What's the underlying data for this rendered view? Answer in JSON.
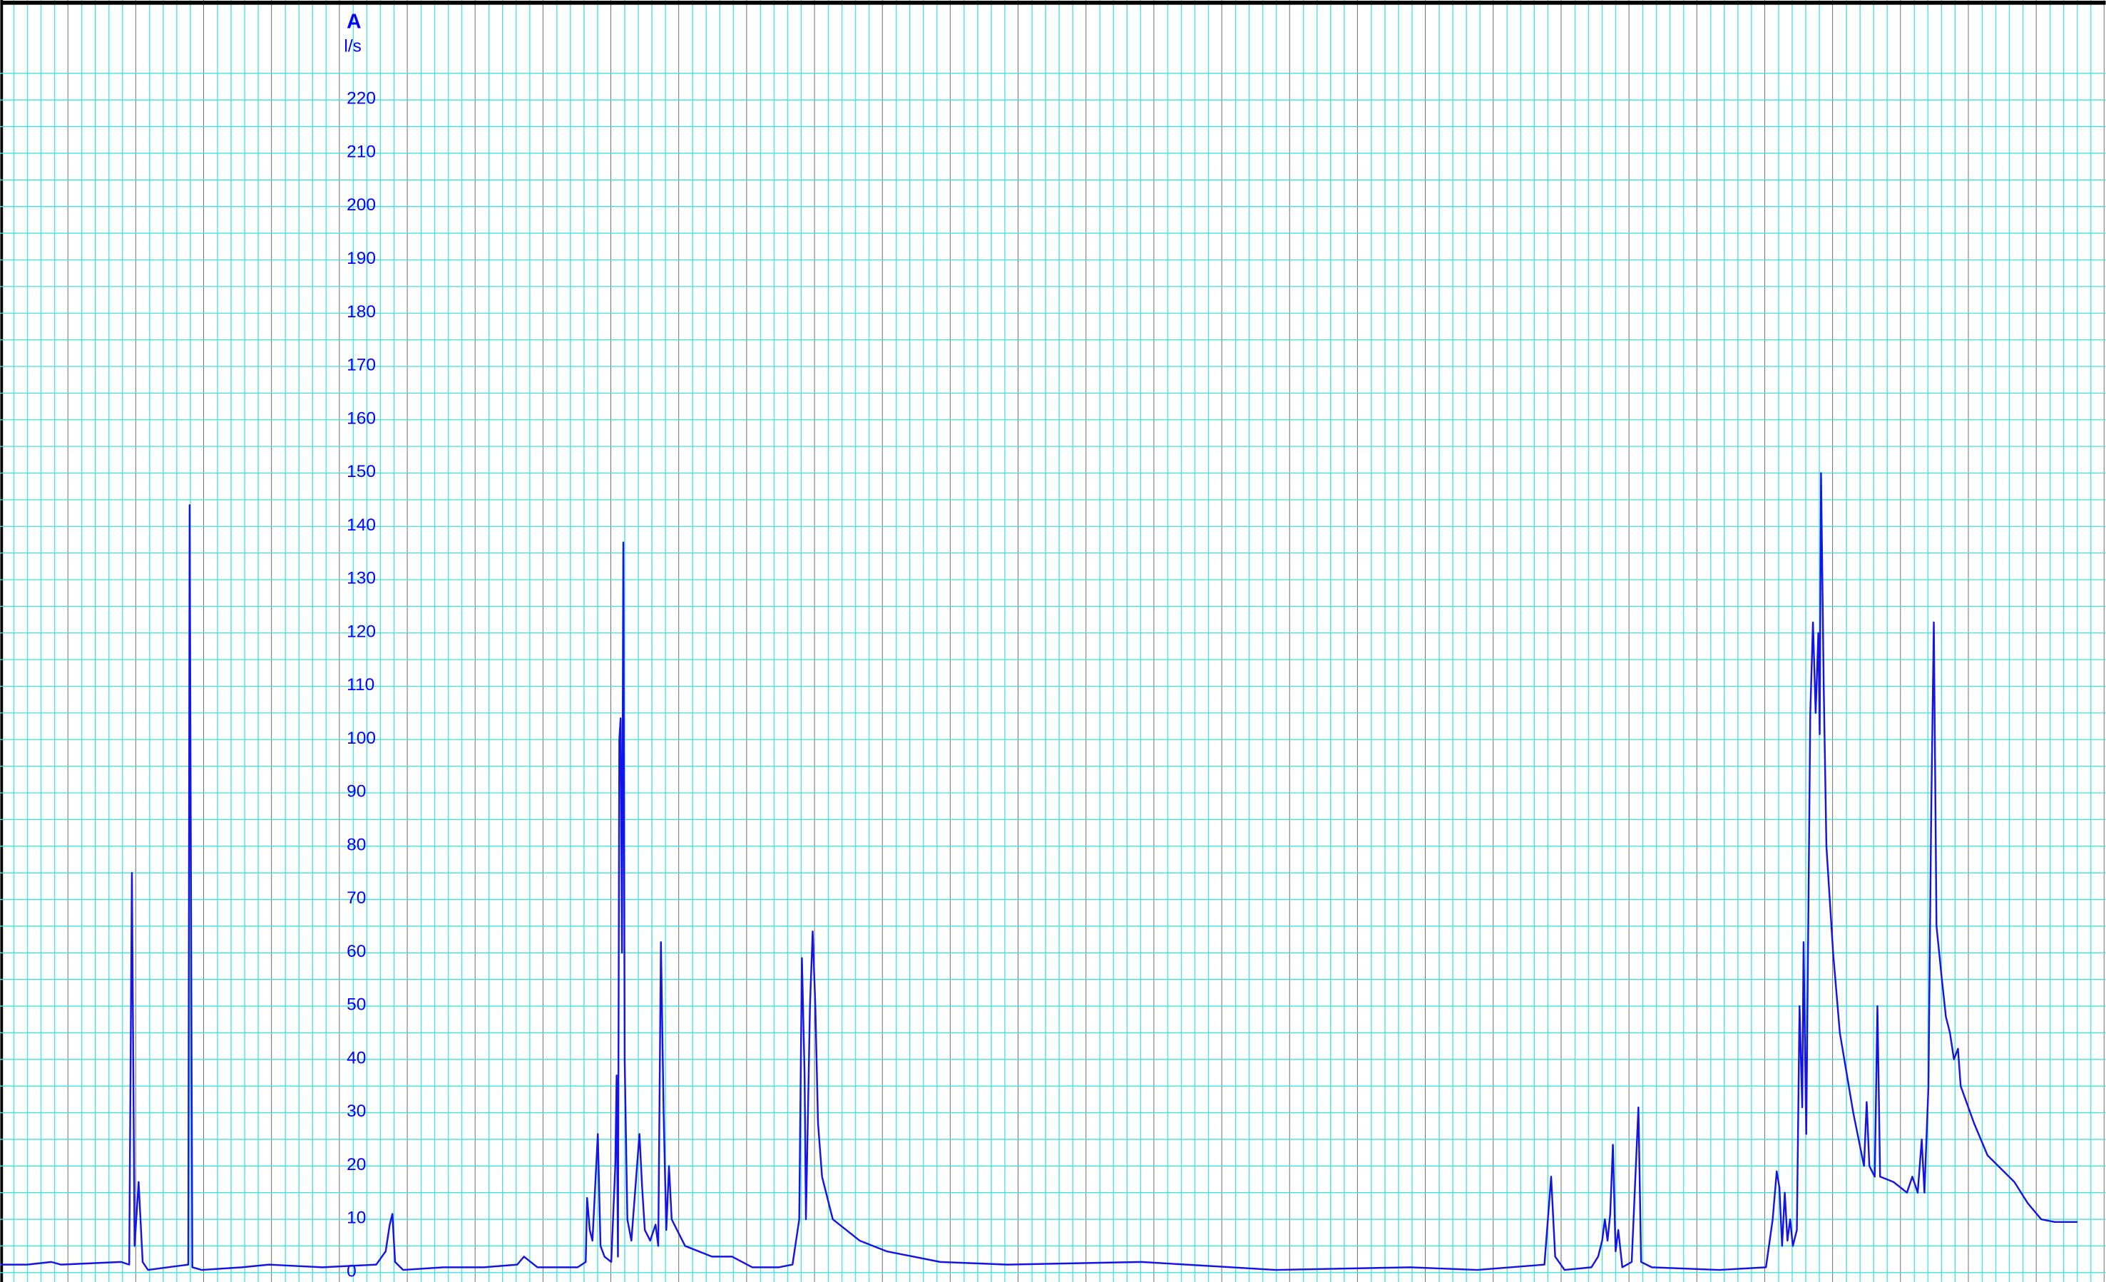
{
  "chart_data": {
    "type": "line",
    "title": "A",
    "y_label": "l/s",
    "ylim": [
      0,
      238
    ],
    "yticks": [
      0,
      10,
      20,
      30,
      40,
      50,
      60,
      70,
      80,
      90,
      100,
      110,
      120,
      130,
      140,
      150,
      160,
      170,
      180,
      190,
      200,
      210,
      220
    ],
    "xlim": [
      0,
      1568
    ],
    "grid": true,
    "series": [
      {
        "color": "#1414e6",
        "x": [
          0,
          20,
          38,
          45,
          90,
          96,
          98,
          100,
          103,
          106,
          110,
          125,
          140,
          141,
          143,
          150,
          180,
          200,
          240,
          280,
          287,
          290,
          292,
          294,
          300,
          330,
          360,
          385,
          390,
          400,
          430,
          436,
          437,
          439,
          441,
          443,
          445,
          447,
          450,
          455,
          458,
          459,
          460,
          461,
          462,
          463,
          464,
          465,
          467,
          470,
          476,
          478,
          480,
          484,
          488,
          490,
          492,
          494,
          496,
          498,
          500,
          510,
          530,
          545,
          560,
          580,
          590,
          595,
          597,
          599,
          600,
          603,
          605,
          607,
          609,
          612,
          620,
          640,
          660,
          700,
          750,
          850,
          950,
          1050,
          1100,
          1150,
          1155,
          1158,
          1165,
          1185,
          1190,
          1193,
          1195,
          1197,
          1199,
          1201,
          1203,
          1205,
          1208,
          1215,
          1220,
          1222,
          1230,
          1280,
          1315,
          1320,
          1323,
          1325,
          1327,
          1329,
          1331,
          1333,
          1335,
          1338,
          1340,
          1342,
          1343,
          1345,
          1348,
          1350,
          1352,
          1354,
          1355,
          1356,
          1358,
          1360,
          1365,
          1370,
          1380,
          1388,
          1390,
          1392,
          1396,
          1398,
          1400,
          1410,
          1420,
          1424,
          1428,
          1431,
          1433,
          1436,
          1438,
          1440,
          1442,
          1446,
          1449,
          1452,
          1455,
          1458,
          1460,
          1470,
          1480,
          1500,
          1510,
          1520,
          1530,
          1547
        ],
        "values": [
          1.5,
          1.5,
          2,
          1.5,
          2,
          1.5,
          75,
          5,
          17,
          2,
          0.5,
          1,
          1.5,
          144,
          1,
          0.5,
          1,
          1.5,
          1,
          1.5,
          4,
          9,
          11,
          2,
          0.5,
          1,
          1,
          1.5,
          3,
          1,
          1,
          2,
          14,
          8,
          6,
          16,
          26,
          5,
          3,
          2,
          20,
          37,
          3,
          100,
          104,
          60,
          137,
          40,
          10,
          6,
          26,
          16,
          8,
          6,
          9,
          5,
          62,
          30,
          8,
          20,
          10,
          5,
          3,
          3,
          1,
          1,
          1.5,
          10,
          59,
          37,
          10,
          50,
          64,
          50,
          28,
          18,
          10,
          6,
          4,
          2,
          1.5,
          2,
          0.5,
          1,
          0.5,
          1.5,
          18,
          3,
          0.5,
          1,
          3,
          6,
          10,
          6,
          11,
          24,
          4,
          8,
          1,
          2,
          31,
          2,
          1,
          0.5,
          1,
          10,
          19,
          16,
          5,
          15,
          6,
          10,
          5,
          8,
          50,
          31,
          62,
          26,
          105,
          122,
          105,
          120,
          101,
          150,
          110,
          80,
          60,
          45,
          30,
          20,
          32,
          20,
          18,
          50,
          18,
          17,
          15,
          18,
          15,
          25,
          15,
          35,
          85,
          122,
          65,
          55,
          48,
          45,
          40,
          42,
          35,
          28,
          22,
          17,
          13,
          10,
          9.5,
          9.5
        ]
      }
    ]
  }
}
